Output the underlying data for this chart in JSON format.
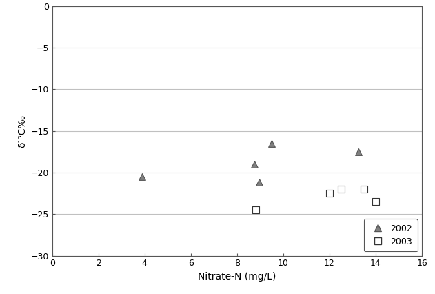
{
  "series_2002": {
    "x": [
      3.9,
      8.75,
      8.95,
      9.5,
      13.25
    ],
    "y": [
      -20.5,
      -19.0,
      -21.2,
      -16.5,
      -17.5
    ],
    "label": "2002",
    "marker": "^",
    "color": "#808080",
    "markersize": 7,
    "edgecolor": "#555555"
  },
  "series_2003": {
    "x": [
      8.8,
      12.0,
      12.5,
      13.5,
      14.0
    ],
    "y": [
      -24.5,
      -22.5,
      -22.0,
      -22.0,
      -23.5
    ],
    "label": "2003",
    "marker": "s",
    "color": "white",
    "markersize": 7,
    "edgecolor": "#333333"
  },
  "xlabel": "Nitrate-N (mg/L)",
  "ylabel": "δ¹³C‰",
  "xlim": [
    0,
    16
  ],
  "ylim": [
    -30,
    0
  ],
  "xticks": [
    0,
    2,
    4,
    6,
    8,
    10,
    12,
    14,
    16
  ],
  "yticks": [
    0,
    -5,
    -10,
    -15,
    -20,
    -25,
    -30
  ],
  "grid_color": "#c0c0c0",
  "background_color": "#ffffff"
}
